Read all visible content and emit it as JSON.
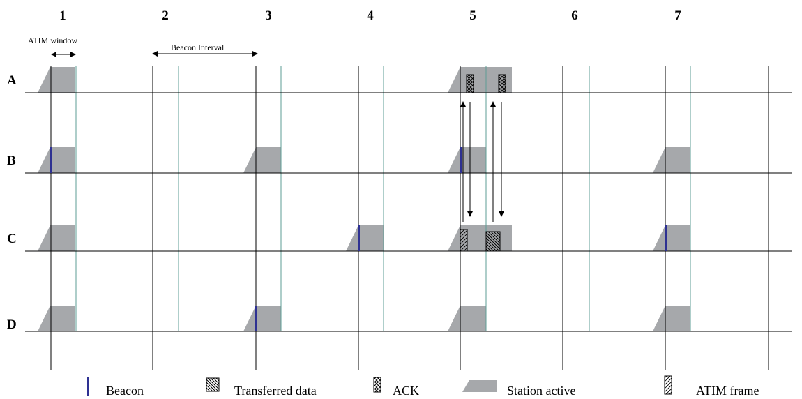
{
  "interval_numbers": [
    "1",
    "2",
    "3",
    "4",
    "5",
    "6",
    "7"
  ],
  "stations": [
    "A",
    "B",
    "C",
    "D"
  ],
  "annotations": {
    "atim_window": "ATIM  window",
    "beacon_interval": "Beacon Interval"
  },
  "legend": {
    "beacon": "Beacon",
    "transferred_data": "Transferred data",
    "ack": "ACK",
    "station_active": "Station active",
    "atim_frame": "ATIM frame"
  },
  "colors": {
    "active_fill": "#a6a8ab",
    "beacon": "#2e3192",
    "window_line": "#5e9c96",
    "line": "#000000"
  }
}
